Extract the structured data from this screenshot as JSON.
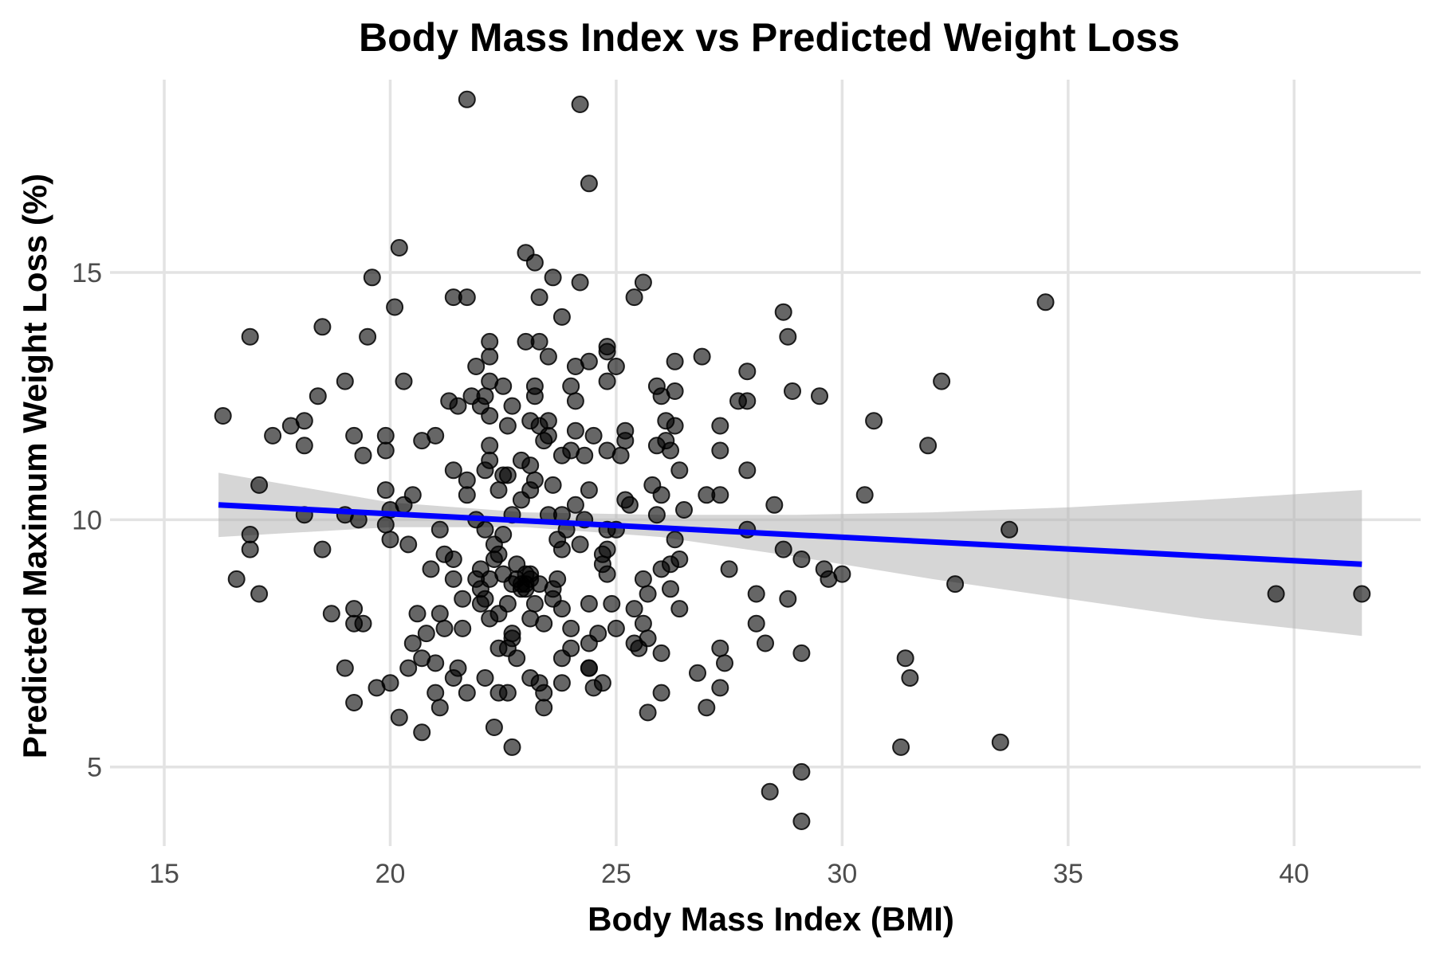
{
  "chart_data": {
    "type": "scatter",
    "title": "Body Mass Index vs Predicted Weight Loss",
    "xlabel": "Body Mass Index (BMI)",
    "ylabel": "Predicted Maximum Weight Loss (%)",
    "xlim": [
      13.8,
      42.8
    ],
    "ylim": [
      3.4,
      18.9
    ],
    "xticks": [
      15,
      20,
      25,
      30,
      35,
      40
    ],
    "yticks": [
      5,
      10,
      15
    ],
    "xtick_labels": [
      "15",
      "20",
      "25",
      "30",
      "35",
      "40"
    ],
    "ytick_labels": [
      "5",
      "10",
      "15"
    ],
    "grid": true,
    "colors": {
      "points": "#000000",
      "trend": "#0000ff",
      "band": "#b5b5b5",
      "grid": "#e3e3e3"
    },
    "trend_line": {
      "x": [
        16.2,
        41.5
      ],
      "y": [
        10.3,
        9.1
      ]
    },
    "confidence_band": {
      "x": [
        16.2,
        20.0,
        23.0,
        26.0,
        29.0,
        32.0,
        35.0,
        38.0,
        41.5
      ],
      "lower": [
        9.65,
        9.85,
        9.85,
        9.65,
        9.25,
        8.8,
        8.4,
        8.0,
        7.65
      ],
      "upper": [
        10.95,
        10.35,
        10.15,
        10.1,
        10.1,
        10.15,
        10.25,
        10.4,
        10.6
      ]
    },
    "points": [
      [
        21.7,
        18.5
      ],
      [
        24.2,
        18.4
      ],
      [
        24.4,
        16.8
      ],
      [
        20.2,
        15.5
      ],
      [
        23.0,
        15.4
      ],
      [
        23.2,
        15.2
      ],
      [
        19.6,
        14.9
      ],
      [
        23.6,
        14.9
      ],
      [
        24.2,
        14.8
      ],
      [
        25.6,
        14.8
      ],
      [
        21.4,
        14.5
      ],
      [
        21.7,
        14.5
      ],
      [
        23.3,
        14.5
      ],
      [
        25.4,
        14.5
      ],
      [
        34.5,
        14.4
      ],
      [
        20.1,
        14.3
      ],
      [
        23.8,
        14.1
      ],
      [
        28.7,
        14.2
      ],
      [
        18.5,
        13.9
      ],
      [
        16.9,
        13.7
      ],
      [
        19.5,
        13.7
      ],
      [
        22.2,
        13.6
      ],
      [
        23.0,
        13.6
      ],
      [
        23.3,
        13.6
      ],
      [
        28.8,
        13.7
      ],
      [
        24.8,
        13.5
      ],
      [
        24.8,
        13.4
      ],
      [
        26.9,
        13.3
      ],
      [
        22.2,
        13.3
      ],
      [
        23.5,
        13.3
      ],
      [
        24.4,
        13.2
      ],
      [
        26.3,
        13.2
      ],
      [
        25.0,
        13.1
      ],
      [
        21.9,
        13.1
      ],
      [
        24.1,
        13.1
      ],
      [
        27.9,
        13.0
      ],
      [
        19.0,
        12.8
      ],
      [
        20.3,
        12.8
      ],
      [
        22.2,
        12.8
      ],
      [
        24.8,
        12.8
      ],
      [
        32.2,
        12.8
      ],
      [
        22.5,
        12.7
      ],
      [
        23.2,
        12.7
      ],
      [
        24.0,
        12.7
      ],
      [
        25.9,
        12.7
      ],
      [
        26.0,
        12.5
      ],
      [
        26.3,
        12.6
      ],
      [
        28.9,
        12.6
      ],
      [
        29.5,
        12.5
      ],
      [
        18.4,
        12.5
      ],
      [
        21.3,
        12.4
      ],
      [
        22.1,
        12.5
      ],
      [
        23.2,
        12.5
      ],
      [
        24.1,
        12.4
      ],
      [
        27.7,
        12.4
      ],
      [
        27.9,
        12.4
      ],
      [
        21.5,
        12.3
      ],
      [
        22.0,
        12.3
      ],
      [
        22.7,
        12.3
      ],
      [
        16.3,
        12.1
      ],
      [
        22.2,
        12.1
      ],
      [
        23.1,
        12.0
      ],
      [
        23.3,
        11.9
      ],
      [
        26.1,
        12.0
      ],
      [
        26.3,
        11.9
      ],
      [
        30.7,
        12.0
      ],
      [
        18.1,
        12.0
      ],
      [
        17.8,
        11.9
      ],
      [
        22.6,
        11.9
      ],
      [
        24.1,
        11.8
      ],
      [
        25.2,
        11.8
      ],
      [
        27.3,
        11.9
      ],
      [
        17.4,
        11.7
      ],
      [
        19.2,
        11.7
      ],
      [
        19.9,
        11.7
      ],
      [
        21.0,
        11.7
      ],
      [
        23.5,
        11.7
      ],
      [
        24.5,
        11.7
      ],
      [
        25.2,
        11.6
      ],
      [
        20.7,
        11.6
      ],
      [
        23.4,
        11.6
      ],
      [
        25.9,
        11.5
      ],
      [
        26.2,
        11.4
      ],
      [
        18.1,
        11.5
      ],
      [
        19.9,
        11.4
      ],
      [
        22.2,
        11.5
      ],
      [
        24.0,
        11.4
      ],
      [
        24.8,
        11.4
      ],
      [
        25.1,
        11.3
      ],
      [
        27.3,
        11.4
      ],
      [
        31.9,
        11.5
      ],
      [
        19.4,
        11.3
      ],
      [
        22.2,
        11.2
      ],
      [
        22.9,
        11.2
      ],
      [
        23.8,
        11.3
      ],
      [
        23.1,
        11.1
      ],
      [
        24.3,
        11.3
      ],
      [
        21.4,
        11.0
      ],
      [
        22.1,
        11.0
      ],
      [
        22.6,
        10.9
      ],
      [
        23.2,
        10.8
      ],
      [
        26.4,
        11.0
      ],
      [
        27.9,
        11.0
      ],
      [
        21.7,
        10.8
      ],
      [
        23.6,
        10.7
      ],
      [
        25.8,
        10.7
      ],
      [
        17.1,
        10.7
      ],
      [
        22.4,
        10.6
      ],
      [
        23.1,
        10.6
      ],
      [
        24.4,
        10.6
      ],
      [
        19.9,
        10.6
      ],
      [
        21.7,
        10.5
      ],
      [
        20.5,
        10.5
      ],
      [
        26.0,
        10.5
      ],
      [
        27.0,
        10.5
      ],
      [
        27.3,
        10.5
      ],
      [
        30.5,
        10.5
      ],
      [
        25.2,
        10.4
      ],
      [
        28.5,
        10.3
      ],
      [
        20.3,
        10.3
      ],
      [
        22.9,
        10.4
      ],
      [
        24.1,
        10.3
      ],
      [
        26.5,
        10.2
      ],
      [
        20.0,
        10.2
      ],
      [
        25.3,
        10.3
      ],
      [
        23.5,
        10.1
      ],
      [
        22.7,
        10.1
      ],
      [
        19.0,
        10.1
      ],
      [
        21.9,
        10.0
      ],
      [
        23.8,
        10.1
      ],
      [
        24.3,
        10.0
      ],
      [
        18.1,
        10.1
      ],
      [
        19.3,
        10.0
      ],
      [
        19.9,
        9.9
      ],
      [
        23.9,
        9.8
      ],
      [
        24.8,
        9.8
      ],
      [
        25.0,
        9.8
      ],
      [
        27.9,
        9.8
      ],
      [
        22.1,
        9.8
      ],
      [
        22.5,
        9.7
      ],
      [
        16.9,
        9.7
      ],
      [
        20.0,
        9.6
      ],
      [
        23.7,
        9.6
      ],
      [
        26.3,
        9.6
      ],
      [
        33.7,
        9.8
      ],
      [
        20.4,
        9.5
      ],
      [
        22.3,
        9.5
      ],
      [
        24.8,
        9.4
      ],
      [
        23.8,
        9.4
      ],
      [
        16.9,
        9.4
      ],
      [
        18.5,
        9.4
      ],
      [
        22.4,
        9.3
      ],
      [
        24.7,
        9.3
      ],
      [
        28.7,
        9.4
      ],
      [
        21.2,
        9.3
      ],
      [
        29.1,
        9.2
      ],
      [
        21.4,
        9.2
      ],
      [
        22.8,
        9.1
      ],
      [
        24.7,
        9.1
      ],
      [
        26.2,
        9.1
      ],
      [
        26.4,
        9.2
      ],
      [
        27.5,
        9.0
      ],
      [
        29.6,
        9.0
      ],
      [
        20.9,
        9.0
      ],
      [
        22.0,
        9.0
      ],
      [
        22.5,
        8.9
      ],
      [
        23.1,
        8.9
      ],
      [
        24.8,
        8.9
      ],
      [
        25.6,
        8.8
      ],
      [
        29.7,
        8.8
      ],
      [
        30.0,
        8.9
      ],
      [
        21.9,
        8.8
      ],
      [
        22.2,
        8.8
      ],
      [
        22.7,
        8.7
      ],
      [
        22.9,
        8.7
      ],
      [
        23.0,
        8.6
      ],
      [
        23.3,
        8.7
      ],
      [
        26.2,
        8.6
      ],
      [
        32.5,
        8.7
      ],
      [
        16.6,
        8.8
      ],
      [
        21.4,
        8.8
      ],
      [
        22.0,
        8.6
      ],
      [
        23.6,
        8.6
      ],
      [
        25.7,
        8.5
      ],
      [
        17.1,
        8.5
      ],
      [
        22.1,
        8.4
      ],
      [
        22.6,
        8.3
      ],
      [
        23.2,
        8.3
      ],
      [
        23.6,
        8.4
      ],
      [
        28.1,
        8.5
      ],
      [
        28.8,
        8.4
      ],
      [
        39.6,
        8.5
      ],
      [
        41.5,
        8.5
      ],
      [
        21.6,
        8.4
      ],
      [
        24.4,
        8.3
      ],
      [
        24.9,
        8.3
      ],
      [
        25.4,
        8.2
      ],
      [
        26.4,
        8.2
      ],
      [
        19.2,
        8.2
      ],
      [
        22.0,
        8.3
      ],
      [
        22.4,
        8.1
      ],
      [
        23.8,
        8.2
      ],
      [
        20.6,
        8.1
      ],
      [
        21.1,
        8.1
      ],
      [
        18.7,
        8.1
      ],
      [
        22.2,
        8.0
      ],
      [
        23.1,
        8.0
      ],
      [
        19.2,
        7.9
      ],
      [
        19.4,
        7.9
      ],
      [
        23.4,
        7.9
      ],
      [
        24.0,
        7.8
      ],
      [
        25.0,
        7.8
      ],
      [
        25.6,
        7.9
      ],
      [
        28.1,
        7.9
      ],
      [
        21.6,
        7.8
      ],
      [
        22.7,
        7.7
      ],
      [
        24.6,
        7.7
      ],
      [
        20.8,
        7.7
      ],
      [
        21.2,
        7.8
      ],
      [
        22.7,
        7.6
      ],
      [
        25.7,
        7.6
      ],
      [
        24.4,
        7.5
      ],
      [
        25.4,
        7.5
      ],
      [
        28.3,
        7.5
      ],
      [
        20.5,
        7.5
      ],
      [
        22.6,
        7.4
      ],
      [
        22.4,
        7.4
      ],
      [
        24.0,
        7.4
      ],
      [
        25.5,
        7.4
      ],
      [
        26.0,
        7.3
      ],
      [
        27.3,
        7.4
      ],
      [
        29.1,
        7.3
      ],
      [
        20.7,
        7.2
      ],
      [
        21.0,
        7.1
      ],
      [
        22.8,
        7.2
      ],
      [
        23.8,
        7.2
      ],
      [
        24.4,
        7.0
      ],
      [
        27.4,
        7.1
      ],
      [
        31.4,
        7.2
      ],
      [
        19.0,
        7.0
      ],
      [
        20.4,
        7.0
      ],
      [
        21.5,
        7.0
      ],
      [
        24.4,
        7.0
      ],
      [
        26.8,
        6.9
      ],
      [
        23.1,
        6.8
      ],
      [
        22.1,
        6.8
      ],
      [
        21.4,
        6.8
      ],
      [
        24.7,
        6.7
      ],
      [
        23.3,
        6.7
      ],
      [
        23.8,
        6.7
      ],
      [
        20.0,
        6.7
      ],
      [
        31.5,
        6.8
      ],
      [
        19.7,
        6.6
      ],
      [
        24.5,
        6.6
      ],
      [
        27.3,
        6.6
      ],
      [
        22.6,
        6.5
      ],
      [
        21.0,
        6.5
      ],
      [
        21.7,
        6.5
      ],
      [
        22.4,
        6.5
      ],
      [
        23.4,
        6.5
      ],
      [
        26.0,
        6.5
      ],
      [
        19.2,
        6.3
      ],
      [
        21.1,
        6.2
      ],
      [
        23.4,
        6.2
      ],
      [
        27.0,
        6.2
      ],
      [
        25.7,
        6.1
      ],
      [
        20.2,
        6.0
      ],
      [
        22.3,
        5.8
      ],
      [
        20.7,
        5.7
      ],
      [
        22.7,
        5.4
      ],
      [
        31.3,
        5.4
      ],
      [
        33.5,
        5.5
      ],
      [
        29.1,
        4.9
      ],
      [
        28.4,
        4.5
      ],
      [
        29.1,
        3.9
      ],
      [
        21.8,
        12.5
      ],
      [
        23.5,
        12.0
      ],
      [
        26.1,
        11.6
      ],
      [
        22.5,
        10.9
      ],
      [
        25.9,
        10.1
      ],
      [
        21.1,
        9.8
      ],
      [
        23.0,
        8.7
      ],
      [
        22.8,
        8.8
      ],
      [
        23.1,
        8.8
      ],
      [
        22.9,
        8.6
      ],
      [
        23.0,
        8.9
      ],
      [
        26.0,
        9.0
      ],
      [
        24.2,
        9.5
      ],
      [
        22.3,
        9.2
      ],
      [
        23.7,
        8.8
      ]
    ]
  }
}
